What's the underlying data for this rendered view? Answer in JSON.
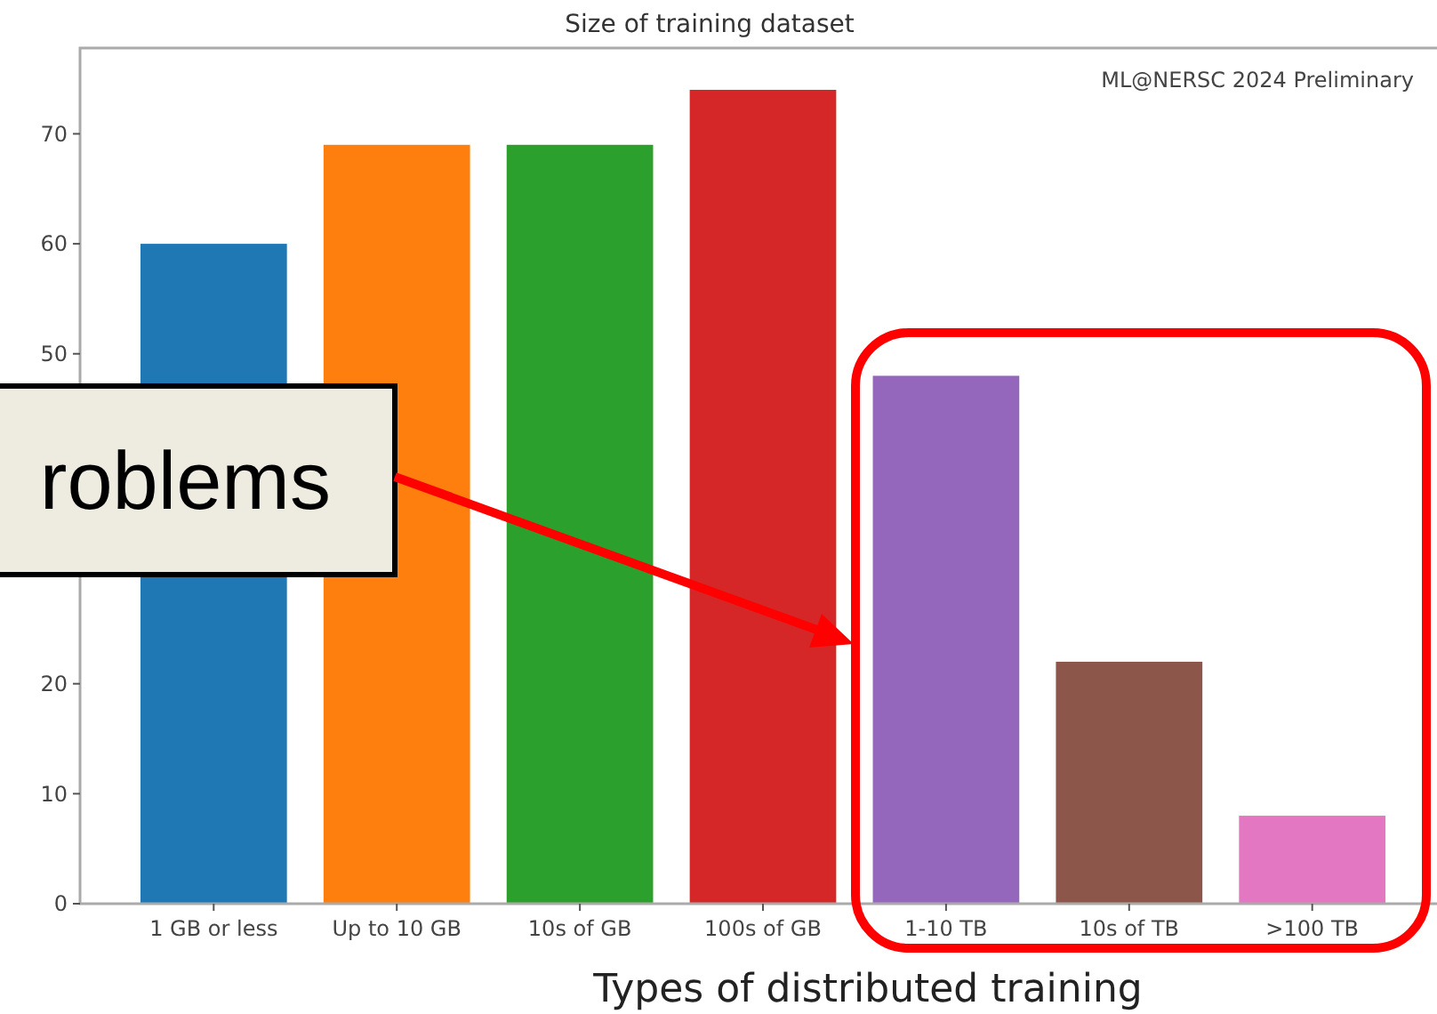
{
  "chart_data": {
    "type": "bar",
    "title": "Size of training dataset",
    "xlabel": "Types of distributed training",
    "categories": [
      "1 GB or less",
      "Up to 10 GB",
      "10s of GB",
      "100s of GB",
      "1-10 TB",
      "10s of TB",
      ">100 TB"
    ],
    "values": [
      60,
      69,
      69,
      74,
      48,
      22,
      8
    ],
    "colors": [
      "#1f77b4",
      "#ff7f0e",
      "#2ca02c",
      "#d62728",
      "#9467bd",
      "#8c564b",
      "#e377c2"
    ],
    "ylim": [
      0,
      77.8
    ],
    "yticks": [
      0,
      10,
      20,
      50,
      60,
      70
    ],
    "grid": false,
    "annotations": [
      "ML@NERSC 2024 Preliminary",
      "roblems"
    ]
  }
}
